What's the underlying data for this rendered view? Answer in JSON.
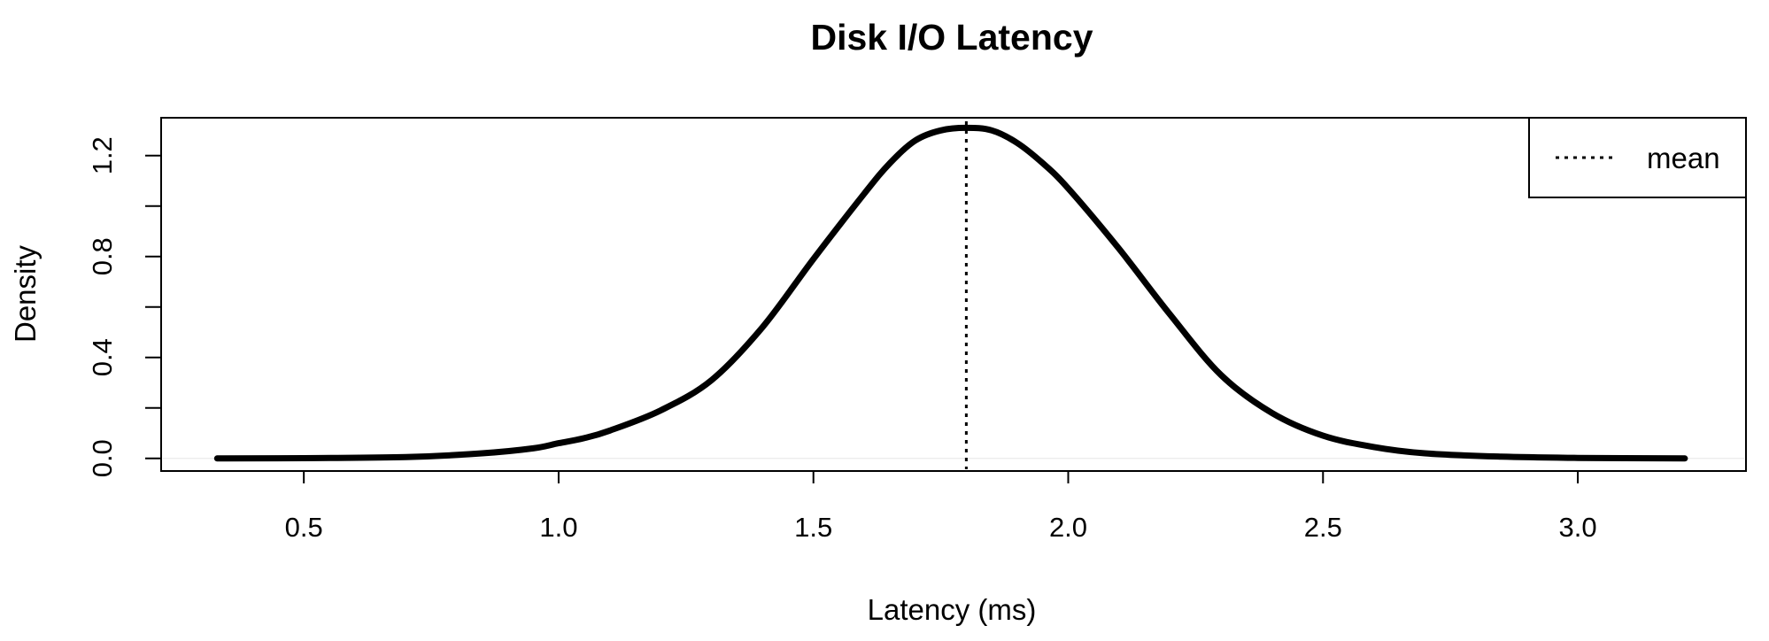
{
  "chart_data": {
    "type": "line",
    "title": "Disk I/O Latency",
    "xlabel": "Latency (ms)",
    "ylabel": "Density",
    "xlim": [
      0.22,
      3.33
    ],
    "ylim": [
      -0.05,
      1.35
    ],
    "x_ticks": [
      "0.5",
      "1.0",
      "1.5",
      "2.0",
      "2.5",
      "3.0"
    ],
    "y_ticks": [
      "0.0",
      "0.4",
      "0.8",
      "1.2"
    ],
    "y_minor_ticks": [
      0.2,
      0.6,
      1.0
    ],
    "grid": false,
    "legend": {
      "position": "top-right",
      "entries": [
        "mean"
      ]
    },
    "series": [
      {
        "x": [
          0.33,
          0.5,
          0.7,
          0.85,
          0.95,
          1.0,
          1.05,
          1.1,
          1.2,
          1.3,
          1.4,
          1.5,
          1.6,
          1.65,
          1.7,
          1.75,
          1.8,
          1.85,
          1.9,
          1.95,
          2.0,
          2.1,
          2.2,
          2.3,
          2.4,
          2.5,
          2.6,
          2.7,
          2.85,
          3.0,
          3.21
        ],
        "y": [
          0.0,
          0.001,
          0.005,
          0.02,
          0.04,
          0.06,
          0.08,
          0.11,
          0.19,
          0.31,
          0.52,
          0.79,
          1.05,
          1.17,
          1.26,
          1.3,
          1.31,
          1.3,
          1.25,
          1.17,
          1.07,
          0.83,
          0.57,
          0.33,
          0.18,
          0.09,
          0.045,
          0.02,
          0.007,
          0.002,
          0.0
        ]
      }
    ],
    "reference_lines": [
      {
        "name": "mean",
        "x": 1.8,
        "style": "dotted"
      }
    ]
  }
}
